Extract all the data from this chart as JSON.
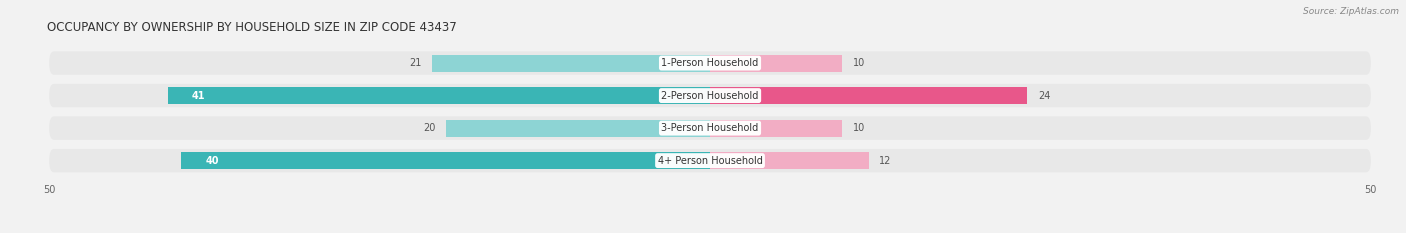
{
  "title": "OCCUPANCY BY OWNERSHIP BY HOUSEHOLD SIZE IN ZIP CODE 43437",
  "source": "Source: ZipAtlas.com",
  "categories": [
    "1-Person Household",
    "2-Person Household",
    "3-Person Household",
    "4+ Person Household"
  ],
  "owner_values": [
    21,
    41,
    20,
    40
  ],
  "renter_values": [
    10,
    24,
    10,
    12
  ],
  "owner_color_strong": "#3ab5b5",
  "owner_color_light": "#8dd4d4",
  "renter_color_strong": "#e8578a",
  "renter_color_light": "#f2adc4",
  "axis_max": 50,
  "bg_color": "#f2f2f2",
  "row_bg_color": "#e8e8e8",
  "title_fontsize": 8.5,
  "label_fontsize": 7.0,
  "value_fontsize": 7.0,
  "tick_fontsize": 7.0,
  "source_fontsize": 6.5,
  "owner_strong_threshold": 30,
  "renter_strong_threshold": 20
}
